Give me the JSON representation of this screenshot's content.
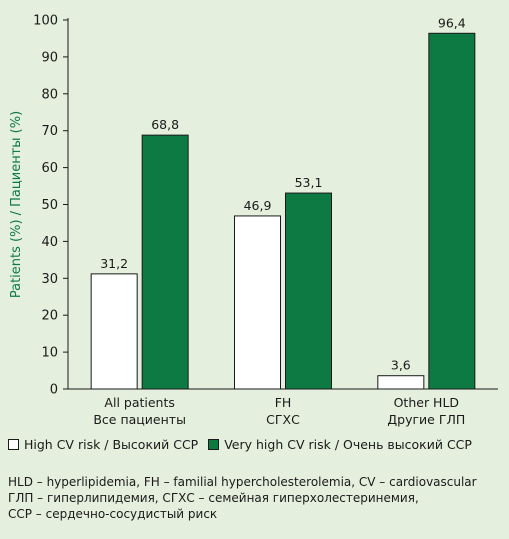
{
  "colors": {
    "background": "#e4efdd",
    "series_high": "#ffffff",
    "series_very_high": "#0e7a43",
    "axis_title": "#0e7a43"
  },
  "chart_data": {
    "type": "bar",
    "categories": [
      [
        "All patients",
        "Все пациенты"
      ],
      [
        "FH",
        "СГХС"
      ],
      [
        "Other HLD",
        "Другие ГЛП"
      ]
    ],
    "series": [
      {
        "name": "High CV risk / Высокий ССР",
        "values": [
          31.2,
          46.9,
          3.6
        ],
        "labels": [
          "31,2",
          "46,9",
          "3,6"
        ]
      },
      {
        "name": "Very high CV risk / Очень высокий ССР",
        "values": [
          68.8,
          53.1,
          96.4
        ],
        "labels": [
          "68,8",
          "53,1",
          "96,4"
        ]
      }
    ],
    "ylabel": "Patients (%) / Пациенты (%)",
    "xlabel": "",
    "ylim": [
      0,
      100
    ],
    "yticks": [
      0,
      10,
      20,
      30,
      40,
      50,
      60,
      70,
      80,
      90,
      100
    ],
    "grid": false,
    "legend_position": "bottom"
  },
  "legend": {
    "high": "High CV risk / Высокий ССР",
    "very_high": "Very high CV risk / Очень высокий ССР"
  },
  "notes": [
    "HLD – hyperlipidemia, FH – familial hypercholesterolemia, CV – cardiovascular",
    "ГЛП – гиперлипидемия, СГХС – семейная гиперхолестеринемия,",
    "ССР – сердечно-сосудистый риск"
  ]
}
